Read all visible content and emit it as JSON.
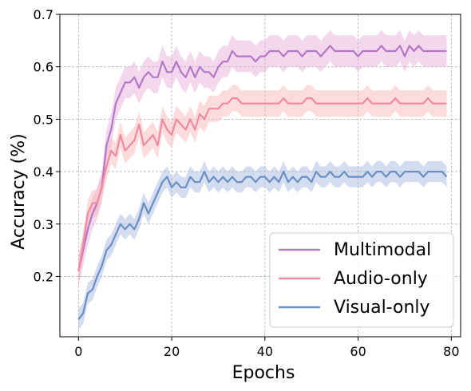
{
  "chart_data": {
    "type": "line",
    "xlabel": "Epochs",
    "ylabel": "Accuracy (%)",
    "xlim": [
      -4,
      82
    ],
    "ylim": [
      0.085,
      0.7
    ],
    "xticks": [
      0,
      20,
      40,
      60,
      80
    ],
    "yticks": [
      0.2,
      0.3,
      0.4,
      0.5,
      0.6,
      0.7
    ],
    "grid": true,
    "legend_position": "lower-right",
    "epochs": [
      0,
      1,
      2,
      3,
      4,
      5,
      6,
      7,
      8,
      9,
      10,
      11,
      12,
      13,
      14,
      15,
      16,
      17,
      18,
      19,
      20,
      21,
      22,
      23,
      24,
      25,
      26,
      27,
      28,
      29,
      30,
      31,
      32,
      33,
      34,
      35,
      36,
      37,
      38,
      39,
      40,
      41,
      42,
      43,
      44,
      45,
      46,
      47,
      48,
      49,
      50,
      51,
      52,
      53,
      54,
      55,
      56,
      57,
      58,
      59,
      60,
      61,
      62,
      63,
      64,
      65,
      66,
      67,
      68,
      69,
      70,
      71,
      72,
      73,
      74,
      75,
      76,
      77,
      78,
      79
    ],
    "series": [
      {
        "name": "Multimodal",
        "color": "#b578c8",
        "band_color": "#e8b0dc",
        "band": 0.03,
        "values": [
          0.21,
          0.25,
          0.29,
          0.32,
          0.34,
          0.37,
          0.45,
          0.48,
          0.53,
          0.55,
          0.57,
          0.57,
          0.58,
          0.56,
          0.58,
          0.59,
          0.58,
          0.58,
          0.61,
          0.59,
          0.59,
          0.61,
          0.59,
          0.58,
          0.6,
          0.58,
          0.6,
          0.59,
          0.59,
          0.58,
          0.6,
          0.61,
          0.61,
          0.63,
          0.62,
          0.62,
          0.62,
          0.62,
          0.61,
          0.62,
          0.62,
          0.63,
          0.63,
          0.63,
          0.62,
          0.63,
          0.63,
          0.63,
          0.62,
          0.63,
          0.63,
          0.63,
          0.62,
          0.63,
          0.64,
          0.63,
          0.63,
          0.63,
          0.63,
          0.63,
          0.62,
          0.63,
          0.63,
          0.63,
          0.63,
          0.64,
          0.63,
          0.63,
          0.63,
          0.64,
          0.62,
          0.64,
          0.63,
          0.64,
          0.63,
          0.63,
          0.63,
          0.63,
          0.63,
          0.63
        ]
      },
      {
        "name": "Audio-only",
        "color": "#f08aa0",
        "band_color": "#f8b8b8",
        "band": 0.025,
        "values": [
          0.21,
          0.26,
          0.32,
          0.34,
          0.34,
          0.37,
          0.41,
          0.44,
          0.43,
          0.47,
          0.44,
          0.45,
          0.46,
          0.49,
          0.45,
          0.46,
          0.47,
          0.45,
          0.5,
          0.48,
          0.47,
          0.5,
          0.49,
          0.48,
          0.5,
          0.48,
          0.51,
          0.5,
          0.52,
          0.52,
          0.52,
          0.53,
          0.53,
          0.54,
          0.54,
          0.53,
          0.53,
          0.53,
          0.53,
          0.53,
          0.53,
          0.53,
          0.53,
          0.53,
          0.54,
          0.53,
          0.53,
          0.53,
          0.53,
          0.54,
          0.54,
          0.53,
          0.53,
          0.53,
          0.53,
          0.53,
          0.53,
          0.53,
          0.53,
          0.53,
          0.53,
          0.53,
          0.54,
          0.53,
          0.53,
          0.53,
          0.53,
          0.53,
          0.54,
          0.53,
          0.53,
          0.53,
          0.53,
          0.53,
          0.53,
          0.54,
          0.53,
          0.53,
          0.53,
          0.53
        ]
      },
      {
        "name": "Visual-only",
        "color": "#6a8fc4",
        "band_color": "#a8bce0",
        "band": 0.02,
        "values": [
          0.118,
          0.13,
          0.168,
          0.175,
          0.2,
          0.22,
          0.25,
          0.26,
          0.28,
          0.3,
          0.29,
          0.3,
          0.29,
          0.31,
          0.34,
          0.32,
          0.34,
          0.36,
          0.38,
          0.39,
          0.37,
          0.38,
          0.37,
          0.37,
          0.39,
          0.38,
          0.38,
          0.4,
          0.38,
          0.39,
          0.38,
          0.39,
          0.38,
          0.39,
          0.38,
          0.38,
          0.39,
          0.39,
          0.38,
          0.39,
          0.39,
          0.38,
          0.39,
          0.38,
          0.4,
          0.38,
          0.39,
          0.38,
          0.39,
          0.39,
          0.38,
          0.4,
          0.39,
          0.39,
          0.4,
          0.39,
          0.39,
          0.4,
          0.39,
          0.39,
          0.39,
          0.39,
          0.4,
          0.39,
          0.4,
          0.4,
          0.39,
          0.4,
          0.4,
          0.39,
          0.4,
          0.4,
          0.4,
          0.4,
          0.39,
          0.4,
          0.4,
          0.4,
          0.4,
          0.39
        ]
      }
    ]
  }
}
